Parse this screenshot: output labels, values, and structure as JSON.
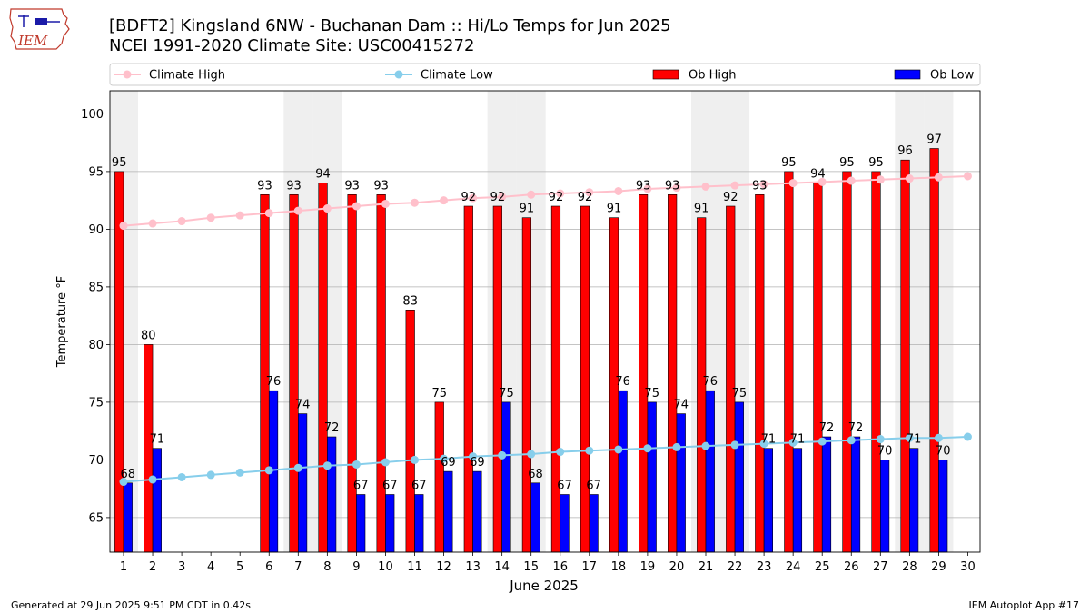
{
  "header": {
    "title_line1": "[BDFT2] Kingsland 6NW - Buchanan Dam :: Hi/Lo Temps for Jun 2025",
    "title_line2": "NCEI 1991-2020 Climate Site: USC00415272",
    "logo_text": "IEM"
  },
  "footer": {
    "generated": "Generated at 29 Jun 2025 9:51 PM CDT in 0.42s",
    "app": "IEM Autoplot App #17"
  },
  "colors": {
    "ob_high": "#ff0000",
    "ob_low": "#0000ff",
    "climate_high": "#ffc0cb",
    "climate_low": "#87ceeb",
    "weekend_shade": "#efefef",
    "grid": "#b0b0b0"
  },
  "chart_data": {
    "type": "bar",
    "xlabel": "June 2025",
    "ylabel": "Temperature °F",
    "ylim": [
      62,
      102
    ],
    "yticks": [
      65,
      70,
      75,
      80,
      85,
      90,
      95,
      100
    ],
    "grid": true,
    "legend_position": "top",
    "categories": [
      1,
      2,
      3,
      4,
      5,
      6,
      7,
      8,
      9,
      10,
      11,
      12,
      13,
      14,
      15,
      16,
      17,
      18,
      19,
      20,
      21,
      22,
      23,
      24,
      25,
      26,
      27,
      28,
      29,
      30
    ],
    "shaded_days": [
      1,
      7,
      8,
      14,
      15,
      21,
      22,
      28,
      29
    ],
    "series": [
      {
        "name": "Climate High",
        "type": "line",
        "values": [
          90.3,
          90.5,
          90.7,
          91.0,
          91.2,
          91.4,
          91.6,
          91.8,
          92.0,
          92.2,
          92.3,
          92.5,
          92.7,
          92.8,
          93.0,
          93.1,
          93.2,
          93.3,
          93.5,
          93.6,
          93.7,
          93.8,
          93.9,
          94.0,
          94.1,
          94.2,
          94.3,
          94.4,
          94.5,
          94.6
        ]
      },
      {
        "name": "Climate Low",
        "type": "line",
        "values": [
          68.1,
          68.3,
          68.5,
          68.7,
          68.9,
          69.1,
          69.3,
          69.5,
          69.6,
          69.8,
          70.0,
          70.1,
          70.3,
          70.4,
          70.5,
          70.7,
          70.8,
          70.9,
          71.0,
          71.1,
          71.2,
          71.3,
          71.4,
          71.5,
          71.6,
          71.7,
          71.8,
          71.9,
          71.9,
          72.0
        ]
      },
      {
        "name": "Ob High",
        "type": "bar",
        "values": [
          95,
          80,
          null,
          null,
          null,
          93,
          93,
          94,
          93,
          93,
          83,
          75,
          92,
          92,
          91,
          92,
          92,
          91,
          93,
          93,
          91,
          92,
          93,
          95,
          94,
          95,
          95,
          96,
          97,
          null
        ]
      },
      {
        "name": "Ob Low",
        "type": "bar",
        "values": [
          68,
          71,
          null,
          null,
          null,
          76,
          74,
          72,
          67,
          67,
          67,
          69,
          69,
          75,
          68,
          67,
          67,
          76,
          75,
          74,
          76,
          75,
          71,
          71,
          72,
          72,
          70,
          71,
          70,
          null
        ]
      }
    ]
  }
}
